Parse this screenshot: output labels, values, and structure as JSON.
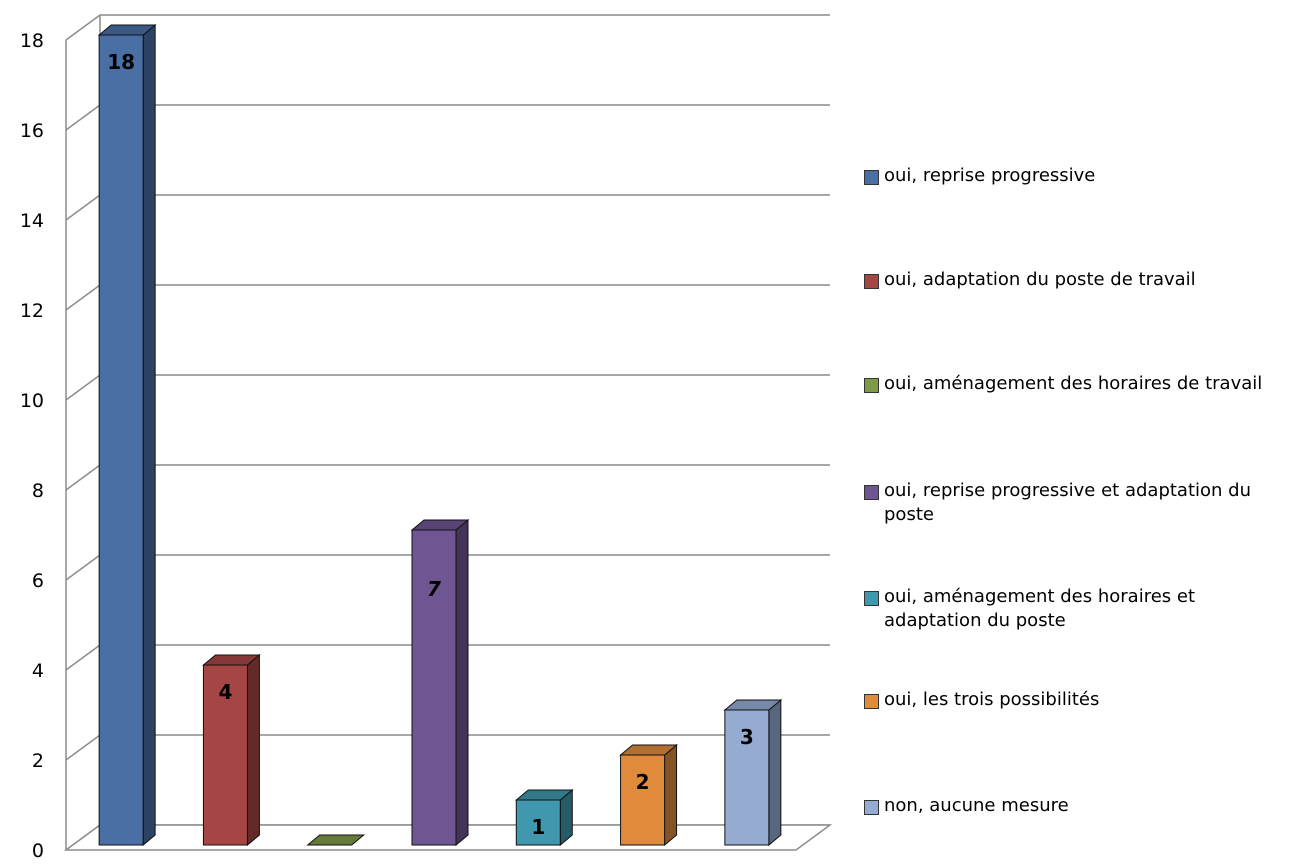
{
  "chart_data": {
    "type": "bar",
    "categories": [
      "oui, reprise progressive",
      "oui, adaptation du poste de travail",
      "oui, aménagement des horaires de travail",
      "oui, reprise progressive et adaptation du poste",
      "oui, aménagement des horaires et adaptation du poste",
      "oui, les trois possibilités",
      "non, aucune mesure"
    ],
    "values": [
      18,
      4,
      0,
      7,
      1,
      2,
      3
    ],
    "data_labels": [
      "18",
      "4",
      "",
      "7",
      "1",
      "2",
      "3"
    ],
    "colors": [
      "#4a6fa5",
      "#a64644",
      "#7d9a47",
      "#6f5692",
      "#3f98ae",
      "#e08b3c",
      "#95abd2"
    ],
    "ylim": [
      0,
      18
    ],
    "yticks": [
      "0",
      "2",
      "4",
      "6",
      "8",
      "10",
      "12",
      "14",
      "16",
      "18"
    ],
    "grid": true,
    "legend_position": "right",
    "style": "3d-column"
  }
}
